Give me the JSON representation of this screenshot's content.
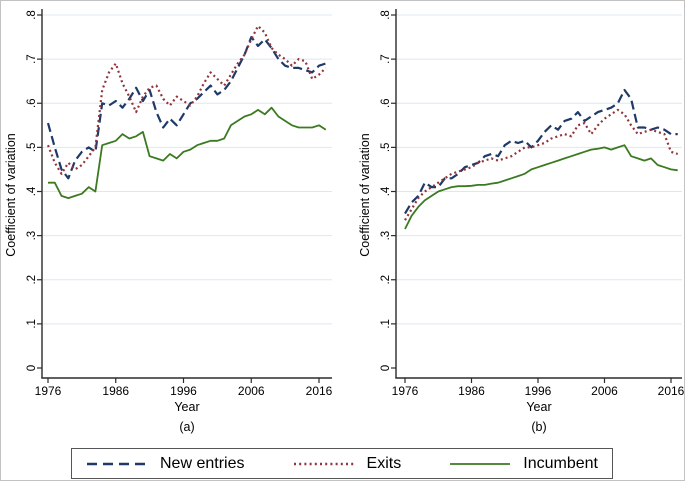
{
  "figure": {
    "colors": {
      "new_entries": "#1f3a68",
      "exits": "#90353b",
      "incumbent": "#3b7a21",
      "grid": "#dce8f1",
      "axis": "#2b2b2b",
      "text": "#000000",
      "legend_border": "#565656",
      "background": "#ffffff"
    }
  },
  "legend": {
    "position": "bottom",
    "items": [
      {
        "label": "New entries",
        "style": "dashed",
        "color_key": "new_entries"
      },
      {
        "label": "Exits",
        "style": "dotted",
        "color_key": "exits"
      },
      {
        "label": "Incumbent",
        "style": "solid",
        "color_key": "incumbent"
      }
    ]
  },
  "chart_data": [
    {
      "type": "line",
      "caption": "(a)",
      "xlabel": "Year",
      "ylabel": "Coefficient of variation",
      "xlim": [
        1975,
        2018
      ],
      "ylim": [
        0,
        0.8
      ],
      "grid": true,
      "legend_position": "bottom",
      "xtick_values": [
        1976,
        1986,
        1996,
        2006,
        2016
      ],
      "xtick_labels": [
        "1976",
        "1986",
        "1996",
        "2006",
        "2016"
      ],
      "ytick_values": [
        0,
        0.1,
        0.2,
        0.3,
        0.4,
        0.5,
        0.6,
        0.7,
        0.8
      ],
      "ytick_labels": [
        "0",
        ".1",
        ".2",
        ".3",
        ".4",
        ".5",
        ".6",
        ".7",
        ".8"
      ],
      "x": [
        1976,
        1977,
        1978,
        1979,
        1980,
        1981,
        1982,
        1983,
        1984,
        1985,
        1986,
        1987,
        1988,
        1989,
        1990,
        1991,
        1992,
        1993,
        1994,
        1995,
        1996,
        1997,
        1998,
        1999,
        2000,
        2001,
        2002,
        2003,
        2004,
        2005,
        2006,
        2007,
        2008,
        2009,
        2010,
        2011,
        2012,
        2013,
        2014,
        2015,
        2016,
        2017
      ],
      "series": [
        {
          "name": "New entries",
          "style": "dashed",
          "color_key": "new_entries",
          "values": [
            0.555,
            0.5,
            0.45,
            0.43,
            0.47,
            0.49,
            0.5,
            0.49,
            0.6,
            0.595,
            0.605,
            0.59,
            0.61,
            0.635,
            0.605,
            0.63,
            0.58,
            0.545,
            0.565,
            0.55,
            0.575,
            0.6,
            0.61,
            0.625,
            0.64,
            0.62,
            0.63,
            0.65,
            0.68,
            0.71,
            0.75,
            0.73,
            0.745,
            0.725,
            0.7,
            0.685,
            0.68,
            0.68,
            0.675,
            0.67,
            0.685,
            0.69
          ]
        },
        {
          "name": "Exits",
          "style": "dotted",
          "color_key": "exits",
          "values": [
            0.505,
            0.465,
            0.44,
            0.465,
            0.45,
            0.46,
            0.48,
            0.5,
            0.63,
            0.67,
            0.69,
            0.645,
            0.615,
            0.58,
            0.615,
            0.635,
            0.64,
            0.61,
            0.595,
            0.615,
            0.605,
            0.595,
            0.615,
            0.645,
            0.67,
            0.655,
            0.64,
            0.665,
            0.69,
            0.71,
            0.745,
            0.775,
            0.76,
            0.725,
            0.71,
            0.7,
            0.685,
            0.7,
            0.695,
            0.655,
            0.665,
            0.68
          ]
        },
        {
          "name": "Incumbent",
          "style": "solid",
          "color_key": "incumbent",
          "values": [
            0.42,
            0.42,
            0.39,
            0.385,
            0.39,
            0.395,
            0.41,
            0.4,
            0.505,
            0.51,
            0.515,
            0.53,
            0.52,
            0.525,
            0.535,
            0.48,
            0.475,
            0.47,
            0.485,
            0.475,
            0.49,
            0.495,
            0.505,
            0.51,
            0.515,
            0.515,
            0.52,
            0.55,
            0.56,
            0.57,
            0.575,
            0.585,
            0.575,
            0.59,
            0.57,
            0.56,
            0.55,
            0.545,
            0.545,
            0.545,
            0.55,
            0.54
          ]
        }
      ]
    },
    {
      "type": "line",
      "caption": "(b)",
      "xlabel": "Year",
      "ylabel": "Coefficient of variation",
      "xlim": [
        1975,
        2018
      ],
      "ylim": [
        0,
        0.8
      ],
      "grid": true,
      "legend_position": "bottom",
      "xtick_values": [
        1976,
        1986,
        1996,
        2006,
        2016
      ],
      "xtick_labels": [
        "1976",
        "1986",
        "1996",
        "2006",
        "2016"
      ],
      "ytick_values": [
        0,
        0.1,
        0.2,
        0.3,
        0.4,
        0.5,
        0.6,
        0.7,
        0.8
      ],
      "ytick_labels": [
        "0",
        ".1",
        ".2",
        ".3",
        ".4",
        ".5",
        ".6",
        ".7",
        ".8"
      ],
      "x": [
        1976,
        1977,
        1978,
        1979,
        1980,
        1981,
        1982,
        1983,
        1984,
        1985,
        1986,
        1987,
        1988,
        1989,
        1990,
        1991,
        1992,
        1993,
        1994,
        1995,
        1996,
        1997,
        1998,
        1999,
        2000,
        2001,
        2002,
        2003,
        2004,
        2005,
        2006,
        2007,
        2008,
        2009,
        2010,
        2011,
        2012,
        2013,
        2014,
        2015,
        2016,
        2017
      ],
      "series": [
        {
          "name": "New entries",
          "style": "dashed",
          "color_key": "new_entries",
          "values": [
            0.35,
            0.375,
            0.39,
            0.42,
            0.41,
            0.41,
            0.43,
            0.43,
            0.44,
            0.455,
            0.46,
            0.465,
            0.48,
            0.485,
            0.48,
            0.505,
            0.515,
            0.51,
            0.515,
            0.5,
            0.515,
            0.535,
            0.55,
            0.54,
            0.56,
            0.565,
            0.58,
            0.56,
            0.57,
            0.58,
            0.585,
            0.59,
            0.6,
            0.63,
            0.61,
            0.545,
            0.545,
            0.54,
            0.545,
            0.54,
            0.53,
            0.53
          ]
        },
        {
          "name": "Exits",
          "style": "dotted",
          "color_key": "exits",
          "values": [
            0.335,
            0.36,
            0.385,
            0.4,
            0.41,
            0.42,
            0.43,
            0.44,
            0.445,
            0.45,
            0.455,
            0.465,
            0.47,
            0.475,
            0.47,
            0.475,
            0.48,
            0.49,
            0.5,
            0.5,
            0.505,
            0.51,
            0.52,
            0.525,
            0.53,
            0.525,
            0.55,
            0.555,
            0.53,
            0.55,
            0.565,
            0.575,
            0.585,
            0.575,
            0.55,
            0.53,
            0.535,
            0.54,
            0.535,
            0.53,
            0.49,
            0.485
          ]
        },
        {
          "name": "Incumbent",
          "style": "solid",
          "color_key": "incumbent",
          "values": [
            0.315,
            0.345,
            0.365,
            0.38,
            0.39,
            0.4,
            0.405,
            0.41,
            0.412,
            0.412,
            0.413,
            0.415,
            0.415,
            0.418,
            0.42,
            0.425,
            0.43,
            0.435,
            0.44,
            0.45,
            0.455,
            0.46,
            0.465,
            0.47,
            0.475,
            0.48,
            0.485,
            0.49,
            0.495,
            0.497,
            0.5,
            0.495,
            0.5,
            0.505,
            0.48,
            0.475,
            0.47,
            0.475,
            0.46,
            0.455,
            0.45,
            0.448
          ]
        }
      ]
    }
  ]
}
